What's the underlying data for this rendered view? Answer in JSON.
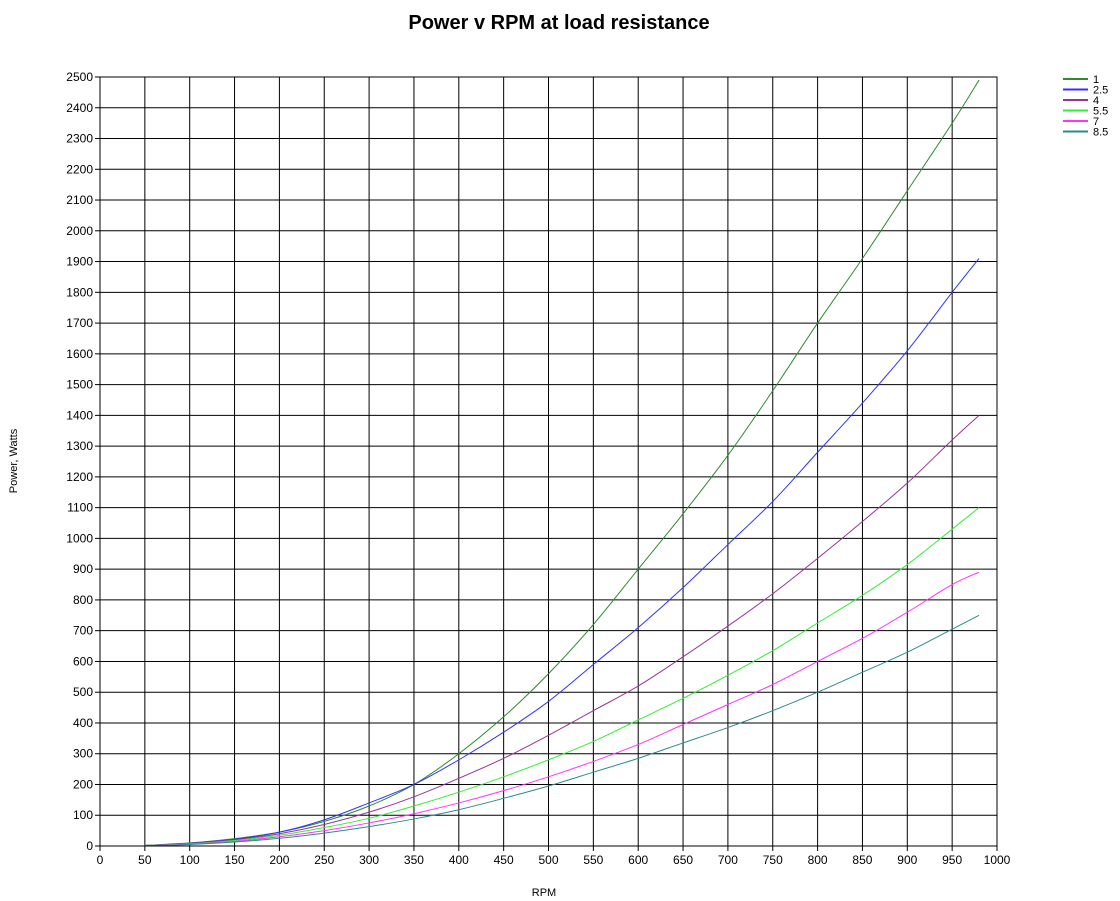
{
  "chart_data": {
    "type": "line",
    "title": "Power v RPM at load resistance",
    "xlabel": "RPM",
    "ylabel": "Power, Watts",
    "xlim": [
      0,
      1000
    ],
    "ylim": [
      0,
      2500
    ],
    "x_ticks": [
      0,
      50,
      100,
      150,
      200,
      250,
      300,
      350,
      400,
      450,
      500,
      550,
      600,
      650,
      700,
      750,
      800,
      850,
      900,
      950,
      1000
    ],
    "y_ticks": [
      0,
      100,
      200,
      300,
      400,
      500,
      600,
      700,
      800,
      900,
      1000,
      1100,
      1200,
      1300,
      1400,
      1500,
      1600,
      1700,
      1800,
      1900,
      2000,
      2100,
      2200,
      2300,
      2400,
      2500
    ],
    "grid": true,
    "legend_position": "top-right",
    "x": [
      50,
      100,
      150,
      200,
      250,
      300,
      350,
      400,
      450,
      500,
      550,
      600,
      650,
      700,
      750,
      800,
      850,
      900,
      950,
      980
    ],
    "series": [
      {
        "name": "1",
        "color": "#2e8b2e",
        "values": [
          2,
          10,
          24,
          45,
          80,
          130,
          200,
          300,
          420,
          560,
          720,
          900,
          1080,
          1270,
          1480,
          1700,
          1910,
          2130,
          2350,
          2490
        ]
      },
      {
        "name": "2.5",
        "color": "#3333ff",
        "values": [
          2,
          9,
          22,
          45,
          85,
          140,
          200,
          280,
          370,
          470,
          590,
          710,
          840,
          980,
          1120,
          1280,
          1440,
          1610,
          1800,
          1910
        ]
      },
      {
        "name": "4",
        "color": "#993399",
        "values": [
          2,
          8,
          20,
          40,
          70,
          110,
          160,
          220,
          285,
          360,
          440,
          520,
          615,
          715,
          820,
          935,
          1055,
          1180,
          1320,
          1400
        ]
      },
      {
        "name": "5.5",
        "color": "#33ee33",
        "values": [
          2,
          7,
          18,
          35,
          60,
          90,
          130,
          175,
          225,
          280,
          340,
          410,
          480,
          555,
          635,
          725,
          815,
          915,
          1030,
          1100
        ]
      },
      {
        "name": "7",
        "color": "#ff33ff",
        "values": [
          1,
          6,
          15,
          30,
          50,
          75,
          105,
          140,
          180,
          225,
          275,
          330,
          395,
          460,
          525,
          600,
          675,
          760,
          850,
          890
        ]
      },
      {
        "name": "8.5",
        "color": "#2e8b8b",
        "values": [
          1,
          5,
          13,
          25,
          42,
          63,
          88,
          118,
          155,
          195,
          240,
          285,
          335,
          385,
          440,
          500,
          565,
          630,
          705,
          750
        ]
      }
    ]
  }
}
